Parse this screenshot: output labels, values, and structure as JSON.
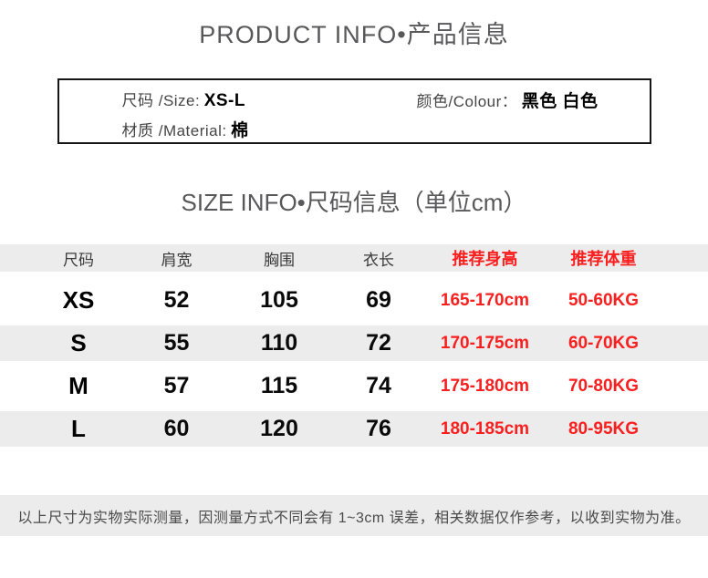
{
  "page": {
    "title": "PRODUCT INFO•产品信息",
    "size_heading": "SIZE INFO•尺码信息（单位cm）"
  },
  "product_box": {
    "size_label": "尺码 /Size:",
    "size_value": "XS-L",
    "colour_label": "颜色/Colour：",
    "colour_value": "黑色 白色",
    "material_label": "材质 /Material:",
    "material_value": "棉"
  },
  "size_table": {
    "headers": [
      "尺码",
      "肩宽",
      "胸围",
      "衣长",
      "推荐身高",
      "推荐体重"
    ],
    "rows": [
      {
        "size": "XS",
        "shoulder": "52",
        "bust": "105",
        "length": "69",
        "rec_height": "165-170cm",
        "rec_weight": "50-60KG"
      },
      {
        "size": "S",
        "shoulder": "55",
        "bust": "110",
        "length": "72",
        "rec_height": "170-175cm",
        "rec_weight": "60-70KG"
      },
      {
        "size": "M",
        "shoulder": "57",
        "bust": "115",
        "length": "74",
        "rec_height": "175-180cm",
        "rec_weight": "70-80KG"
      },
      {
        "size": "L",
        "shoulder": "60",
        "bust": "120",
        "length": "76",
        "rec_height": "180-185cm",
        "rec_weight": "80-95KG"
      }
    ]
  },
  "footer": {
    "note": "以上尺寸为实物实际测量，因测量方式不同会有 1~3cm 误差，相关数据仅作参考，以收到实物为准。"
  },
  "colors": {
    "accent_red": "#f91f1f",
    "band_gray": "#ececec"
  }
}
